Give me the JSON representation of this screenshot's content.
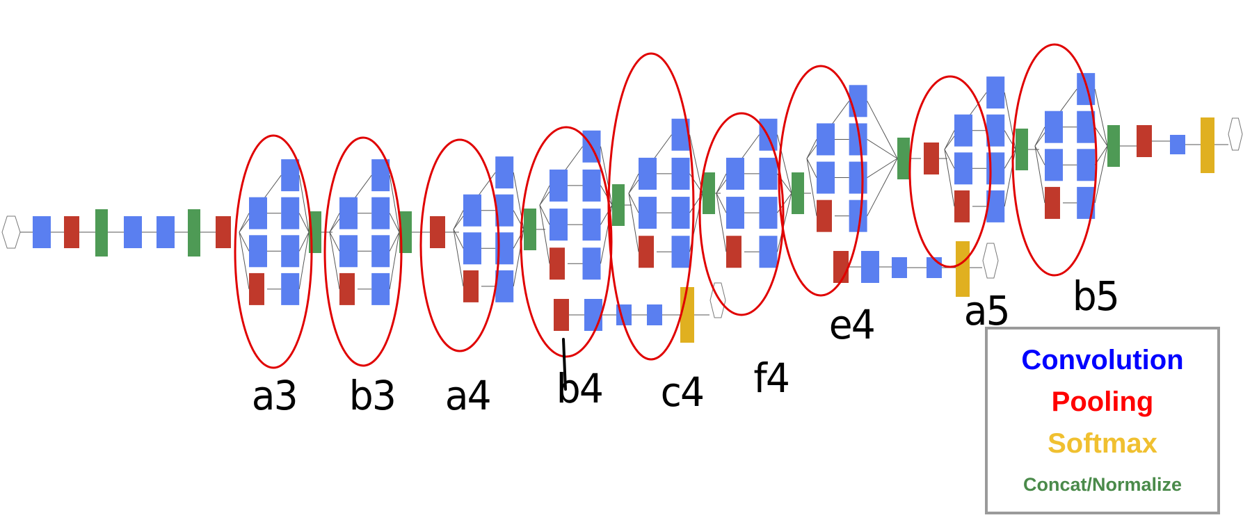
{
  "modules": [
    "a3",
    "b3",
    "a4",
    "b4",
    "c4",
    "f4",
    "e4",
    "a5",
    "b5"
  ],
  "legend": {
    "convolution": "Convolution",
    "pooling": "Pooling",
    "softmax": "Softmax",
    "concat": "Concat/Normalize"
  },
  "colors": {
    "convolution": "#0000ff",
    "pooling": "#ff0000",
    "softmax": "#f0c030",
    "concat": "#4a8a4a",
    "conv_box": "#5a7ff0",
    "pool_box": "#c0392b",
    "concat_box": "#4e9a55",
    "softmax_box": "#e0b020",
    "ellipse": "#e00000"
  },
  "icons": [
    "input-node",
    "softmax-output-node",
    "ellipse-marker"
  ]
}
